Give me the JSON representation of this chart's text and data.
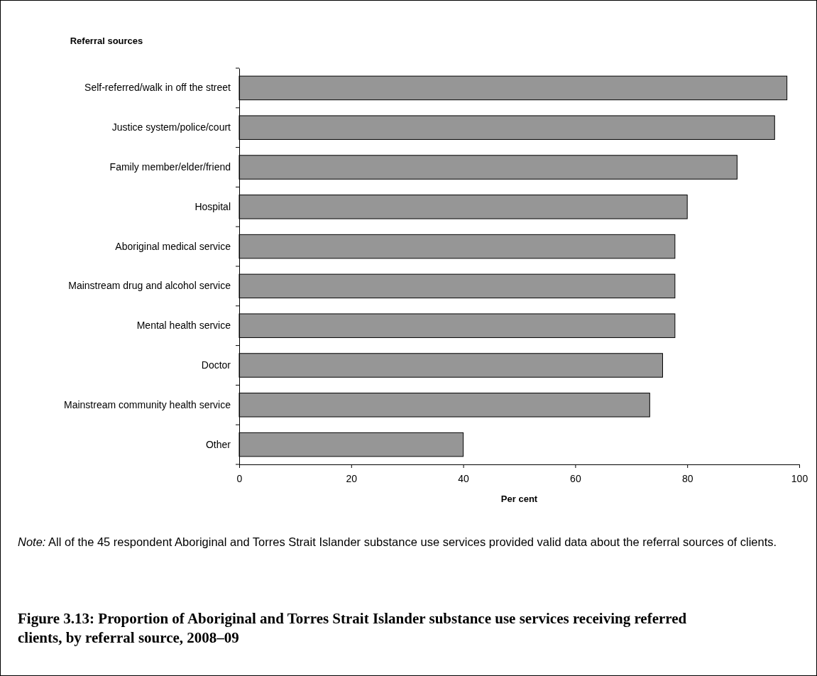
{
  "chart_data": {
    "type": "bar",
    "orientation": "horizontal",
    "title": "Figure 3.13: Proportion of Aboriginal and Torres Strait Islander substance use services receiving referred clients, by referral source, 2008–09",
    "ylabel": "Referral sources",
    "xlabel": "Per cent",
    "categories": [
      "Self-referred/walk in off the street",
      "Justice system/police/court",
      "Family member/elder/friend",
      "Hospital",
      "Aboriginal medical service",
      "Mainstream drug and alcohol service",
      "Mental health service",
      "Doctor",
      "Mainstream community health service",
      "Other"
    ],
    "values": [
      97.8,
      95.6,
      88.9,
      80,
      77.8,
      77.8,
      77.8,
      75.6,
      73.3,
      40
    ],
    "color": "#969696",
    "xlim": [
      0,
      100
    ],
    "xticks": [
      0,
      20,
      40,
      60,
      80,
      100
    ],
    "grid": false,
    "annotations": [
      "Note: All of the 45 respondent Aboriginal and Torres Strait Islander substance use services provided valid data about the referral sources of clients."
    ]
  }
}
